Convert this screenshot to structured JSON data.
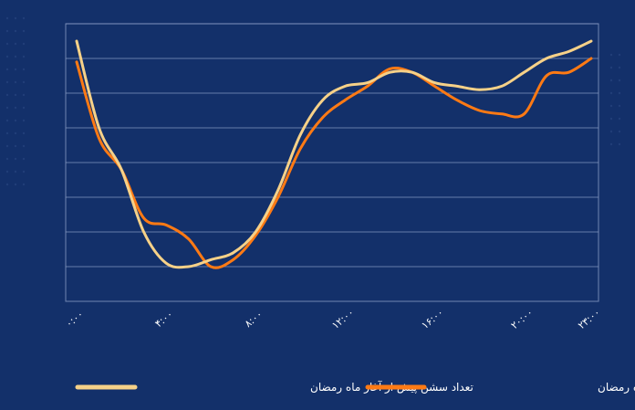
{
  "chart_data": {
    "type": "line",
    "x": [
      "۰:۰۰",
      "۱:۰۰",
      "۲:۰۰",
      "۳:۰۰",
      "۴:۰۰",
      "۵:۰۰",
      "۶:۰۰",
      "۷:۰۰",
      "۸:۰۰",
      "۹:۰۰",
      "۱۰:۰۰",
      "۱۱:۰۰",
      "۱۲:۰۰",
      "۱۳:۰۰",
      "۱۴:۰۰",
      "۱۵:۰۰",
      "۱۶:۰۰",
      "۱۷:۰۰",
      "۱۸:۰۰",
      "۱۹:۰۰",
      "۲۰:۰۰",
      "۲۱:۰۰",
      "۲۲:۰۰",
      "۲۳:۰۰"
    ],
    "tick_labels": [
      "۰:۰۰",
      "۴:۰۰",
      "۸:۰۰",
      "۱۲:۰۰",
      "۱۶:۰۰",
      "۲۰:۰۰",
      "۲۳:۰۰"
    ],
    "tick_positions": [
      0,
      4,
      8,
      12,
      16,
      20,
      23
    ],
    "series": [
      {
        "name": "تعداد سشن پیش از آغاز ماه رمضان",
        "color": "#f6d188",
        "values": [
          7.5,
          5.0,
          3.8,
          2.0,
          1.1,
          1.0,
          1.2,
          1.4,
          2.0,
          3.2,
          4.8,
          5.8,
          6.2,
          6.3,
          6.6,
          6.6,
          6.3,
          6.2,
          6.1,
          6.2,
          6.6,
          7.0,
          7.2,
          7.5
        ],
        "ranked_values": null
      },
      {
        "name": "تعداد سشن پس از آغاز ماه رمضان",
        "color": "#ff7a14",
        "values": [
          6.9,
          4.7,
          3.8,
          2.4,
          2.2,
          1.8,
          1.0,
          1.2,
          1.9,
          3.0,
          4.4,
          5.3,
          5.8,
          6.2,
          6.7,
          6.6,
          6.2,
          5.8,
          5.5,
          5.4,
          5.4,
          6.5,
          6.6,
          7.0
        ]
      }
    ],
    "ylim": [
      0,
      8
    ],
    "y_grid_step": 1,
    "grid": true,
    "legend_position": "bottom",
    "title": "",
    "xlabel": "",
    "ylabel": ""
  }
}
